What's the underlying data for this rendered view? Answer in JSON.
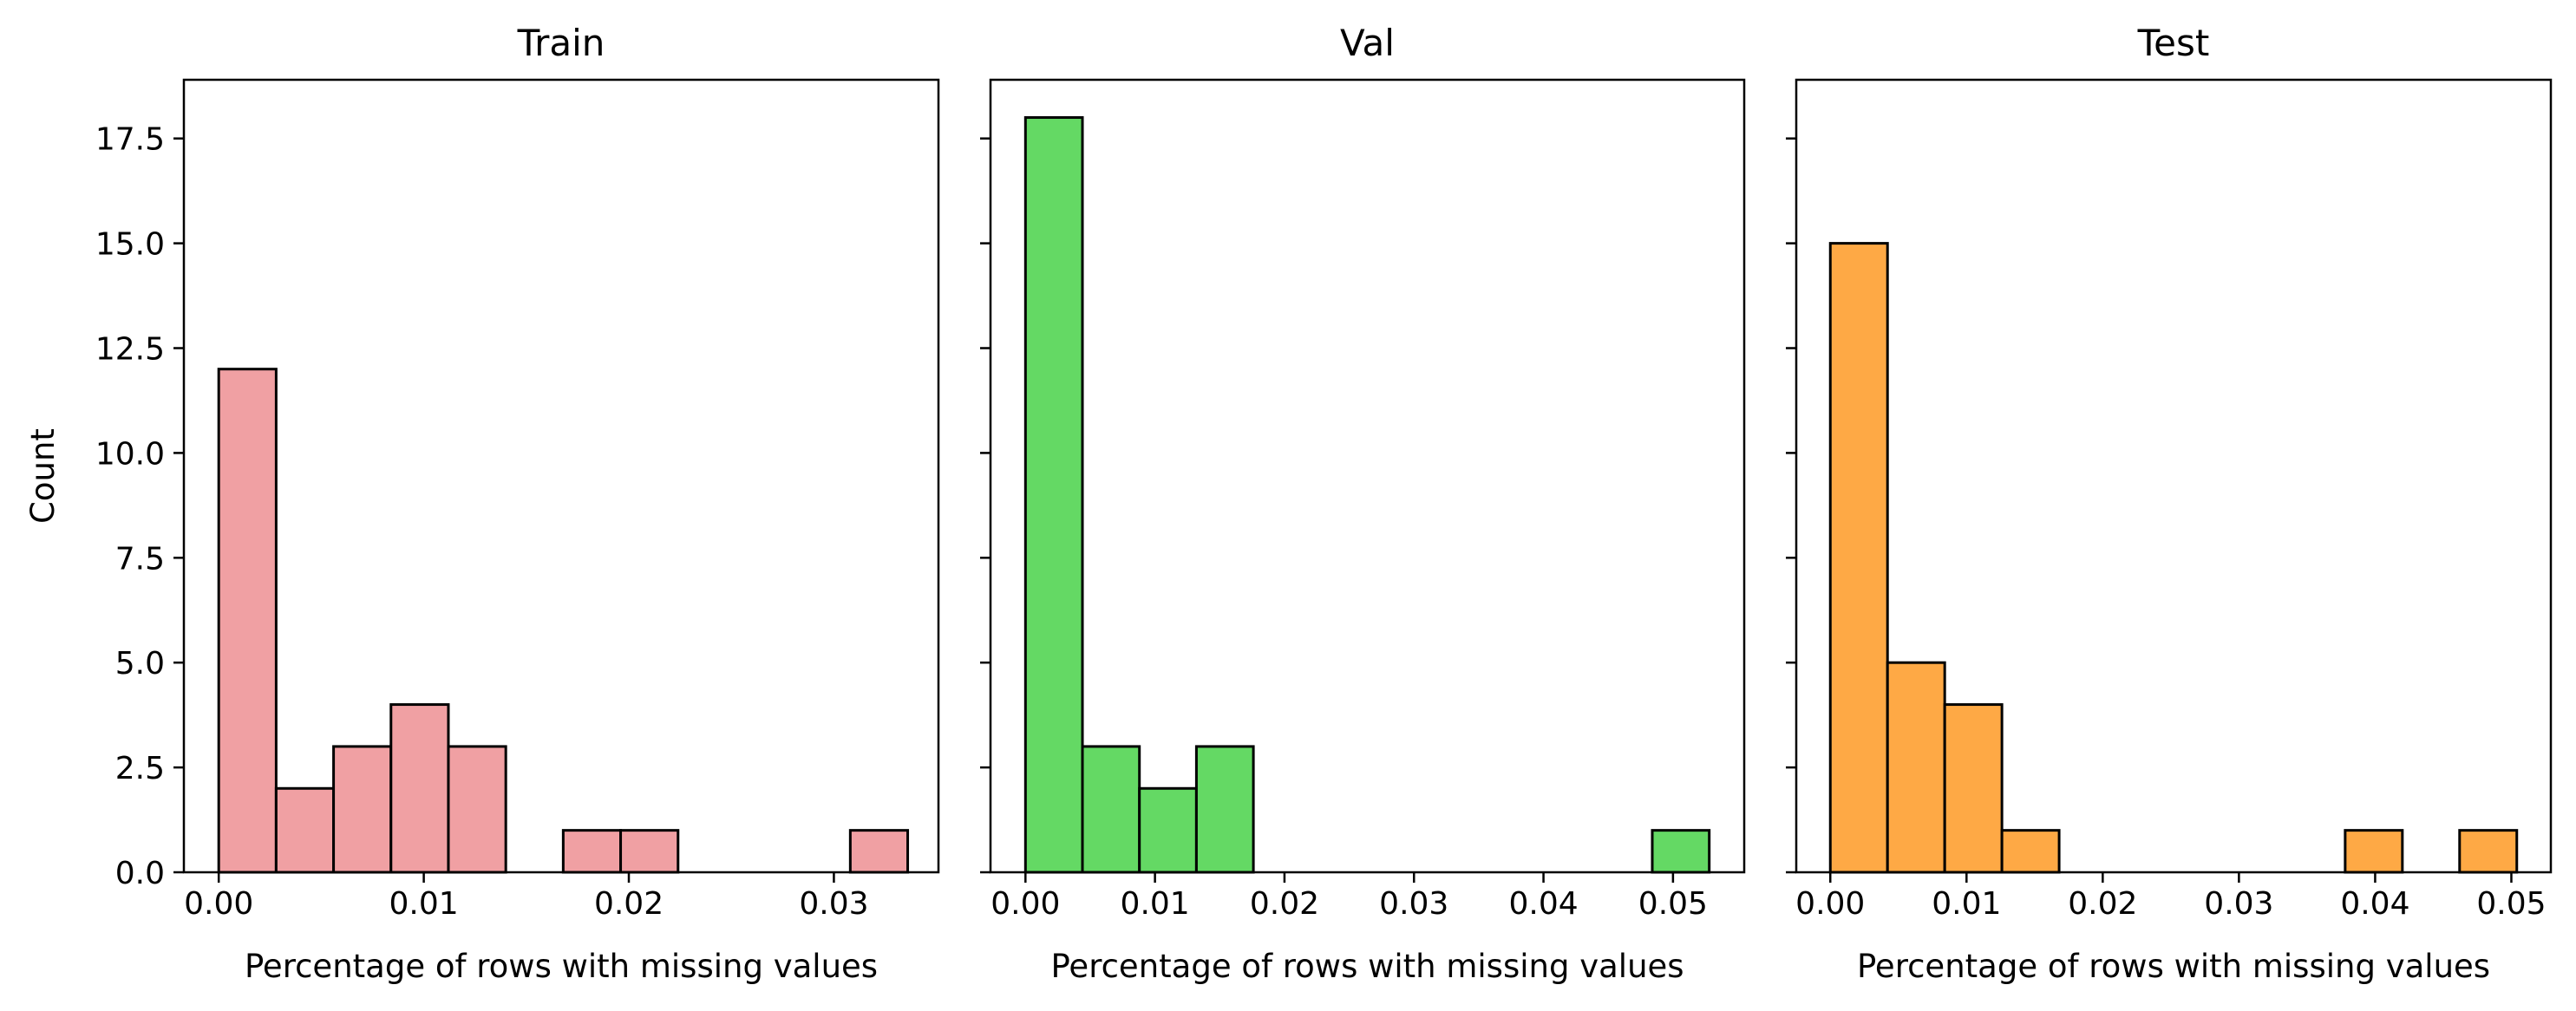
{
  "chart_data": [
    {
      "type": "histogram",
      "title": "Train",
      "xlabel": "Percentage of rows with missing values",
      "ylabel": "Count",
      "color": "#f0a0a3",
      "edge_color": "#000000",
      "xlim": [
        -0.0017,
        0.0351
      ],
      "ylim": [
        0,
        18.9
      ],
      "xticks": [
        0.0,
        0.01,
        0.02,
        0.03
      ],
      "xtick_labels": [
        "0.00",
        "0.01",
        "0.02",
        "0.03"
      ],
      "yticks": [
        0.0,
        2.5,
        5.0,
        7.5,
        10.0,
        12.5,
        15.0,
        17.5
      ],
      "ytick_labels": [
        "0.0",
        "2.5",
        "5.0",
        "7.5",
        "10.0",
        "12.5",
        "15.0",
        "17.5"
      ],
      "bins": [
        {
          "x0": 0.0,
          "x1": 0.0028,
          "count": 12
        },
        {
          "x0": 0.0028,
          "x1": 0.0056,
          "count": 2
        },
        {
          "x0": 0.0056,
          "x1": 0.0084,
          "count": 3
        },
        {
          "x0": 0.0084,
          "x1": 0.0112,
          "count": 4
        },
        {
          "x0": 0.0112,
          "x1": 0.014,
          "count": 3
        },
        {
          "x0": 0.014,
          "x1": 0.0168,
          "count": 0
        },
        {
          "x0": 0.0168,
          "x1": 0.0196,
          "count": 1
        },
        {
          "x0": 0.0196,
          "x1": 0.0224,
          "count": 1
        },
        {
          "x0": 0.0224,
          "x1": 0.0252,
          "count": 0
        },
        {
          "x0": 0.0252,
          "x1": 0.028,
          "count": 0
        },
        {
          "x0": 0.028,
          "x1": 0.0308,
          "count": 0
        },
        {
          "x0": 0.0308,
          "x1": 0.0336,
          "count": 1
        }
      ]
    },
    {
      "type": "histogram",
      "title": "Val",
      "xlabel": "Percentage of rows with missing values",
      "ylabel": "",
      "color": "#64d964",
      "edge_color": "#000000",
      "xlim": [
        -0.0027,
        0.0555
      ],
      "ylim": [
        0,
        18.9
      ],
      "xticks": [
        0.0,
        0.01,
        0.02,
        0.03,
        0.04,
        0.05
      ],
      "xtick_labels": [
        "0.00",
        "0.01",
        "0.02",
        "0.03",
        "0.04",
        "0.05"
      ],
      "yticks": [
        0.0,
        2.5,
        5.0,
        7.5,
        10.0,
        12.5,
        15.0,
        17.5
      ],
      "ytick_labels": [],
      "bins": [
        {
          "x0": 0.0,
          "x1": 0.0044,
          "count": 18
        },
        {
          "x0": 0.0044,
          "x1": 0.0088,
          "count": 3
        },
        {
          "x0": 0.0088,
          "x1": 0.0132,
          "count": 2
        },
        {
          "x0": 0.0132,
          "x1": 0.0176,
          "count": 3
        },
        {
          "x0": 0.0176,
          "x1": 0.022,
          "count": 0
        },
        {
          "x0": 0.022,
          "x1": 0.0264,
          "count": 0
        },
        {
          "x0": 0.0264,
          "x1": 0.0308,
          "count": 0
        },
        {
          "x0": 0.0308,
          "x1": 0.0352,
          "count": 0
        },
        {
          "x0": 0.0352,
          "x1": 0.0396,
          "count": 0
        },
        {
          "x0": 0.0396,
          "x1": 0.044,
          "count": 0
        },
        {
          "x0": 0.044,
          "x1": 0.0484,
          "count": 0
        },
        {
          "x0": 0.0484,
          "x1": 0.0528,
          "count": 1
        }
      ]
    },
    {
      "type": "histogram",
      "title": "Test",
      "xlabel": "Percentage of rows with missing values",
      "ylabel": "",
      "color": "#fea945",
      "edge_color": "#000000",
      "xlim": [
        -0.0025,
        0.0529
      ],
      "ylim": [
        0,
        18.9
      ],
      "xticks": [
        0.0,
        0.01,
        0.02,
        0.03,
        0.04,
        0.05
      ],
      "xtick_labels": [
        "0.00",
        "0.01",
        "0.02",
        "0.03",
        "0.04",
        "0.05"
      ],
      "yticks": [
        0.0,
        2.5,
        5.0,
        7.5,
        10.0,
        12.5,
        15.0,
        17.5
      ],
      "ytick_labels": [],
      "bins": [
        {
          "x0": 0.0,
          "x1": 0.0042,
          "count": 15
        },
        {
          "x0": 0.0042,
          "x1": 0.0084,
          "count": 5
        },
        {
          "x0": 0.0084,
          "x1": 0.0126,
          "count": 4
        },
        {
          "x0": 0.0126,
          "x1": 0.0168,
          "count": 1
        },
        {
          "x0": 0.0168,
          "x1": 0.021,
          "count": 0
        },
        {
          "x0": 0.021,
          "x1": 0.0252,
          "count": 0
        },
        {
          "x0": 0.0252,
          "x1": 0.0294,
          "count": 0
        },
        {
          "x0": 0.0294,
          "x1": 0.0336,
          "count": 0
        },
        {
          "x0": 0.0336,
          "x1": 0.0378,
          "count": 0
        },
        {
          "x0": 0.0378,
          "x1": 0.042,
          "count": 1
        },
        {
          "x0": 0.042,
          "x1": 0.0462,
          "count": 0
        },
        {
          "x0": 0.0462,
          "x1": 0.0504,
          "count": 1
        }
      ]
    }
  ]
}
